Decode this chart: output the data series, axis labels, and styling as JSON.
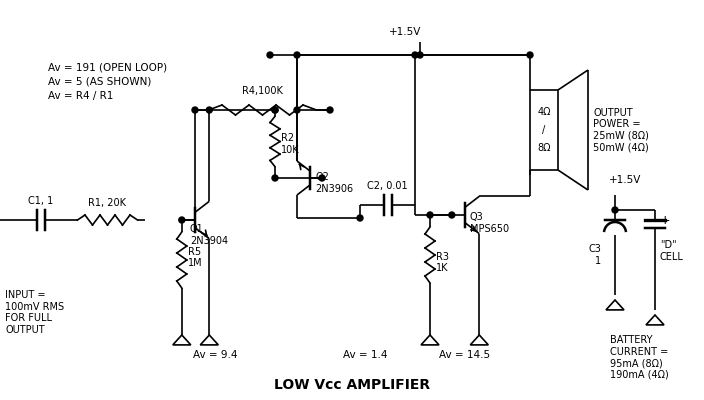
{
  "title": "LOW Vcc AMPLIFIER",
  "background_color": "#ffffff",
  "line_color": "#000000",
  "title_fontsize": 10,
  "label_fontsize": 7,
  "annotations": {
    "av_open": "Av = 191 (OPEN LOOP)",
    "av_shown": "Av = 5 (AS SHOWN)",
    "av_formula": "Av = R4 / R1",
    "input_label": "INPUT =\n100mV RMS\nFOR FULL\nOUTPUT",
    "output_power": "OUTPUT\nPOWER =\n25mW (8Ω)\n50mW (4Ω)",
    "battery_current": "BATTERY\nCURRENT =\n95mA (8Ω)\n190mA (4Ω)",
    "q1_label": "Q1\n2N3904",
    "q2_label": "Q2\n2N3906",
    "q3_label": "Q3\nMPS650",
    "r1_label": "R1, 20K",
    "r2_label": "R2\n10K",
    "r3_label": "R3\n1K",
    "r4_label": "R4,100K",
    "r5_label": "R5\n1M",
    "c1_label": "C1, 1",
    "c2_label": "C2, 0.01",
    "c3_label": "C3\n1",
    "speaker_top": "4Ω",
    "speaker_slash": "/",
    "speaker_bot": "8Ω",
    "vcc1": "+1.5V",
    "vcc2": "+1.5V",
    "av_94": "Av = 9.4",
    "av_14": "Av = 1.4",
    "av_145": "Av = 14.5",
    "plus": "+",
    "dcell1": "\"D\"",
    "dcell2": "CELL"
  }
}
